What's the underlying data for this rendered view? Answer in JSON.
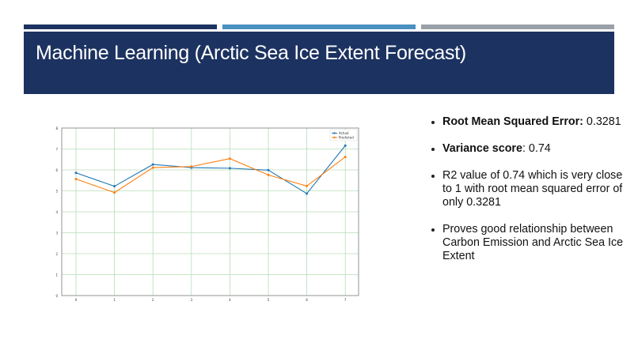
{
  "slide": {
    "title": "Machine Learning (Arctic Sea Ice Extent Forecast)",
    "colors": {
      "banner": "#1c3260",
      "bar_dark": "#1c3260",
      "bar_blue": "#4a90c0",
      "bar_gray": "#9aa0a8"
    }
  },
  "bullets": [
    {
      "bold": "Root Mean Squared Error:",
      "text": " 0.3281"
    },
    {
      "bold": "Variance score",
      "text": ": 0.74"
    },
    {
      "bold": "",
      "text": "R2 value of 0.74 which is very close to 1 with root mean squared error of only 0.3281"
    },
    {
      "bold": "",
      "text": "Proves good relationship between Carbon Emission and Arctic Sea Ice Extent"
    }
  ],
  "chart_data": {
    "type": "line",
    "title": "",
    "xlabel": "",
    "ylabel": "",
    "x": [
      0,
      1,
      2,
      3,
      4,
      5,
      6,
      7
    ],
    "x_tick_labels": [
      "0",
      "1",
      "2",
      "3",
      "4",
      "5",
      "6",
      "7"
    ],
    "y_tick_labels": [
      "0",
      "1",
      "2",
      "3",
      "4",
      "5",
      "6",
      "7",
      "8"
    ],
    "ylim": [
      0,
      8
    ],
    "grid": true,
    "legend_position": "upper right",
    "series": [
      {
        "name": "Actual",
        "color": "#1f77b4",
        "marker": "o",
        "values": [
          5.86,
          5.22,
          6.26,
          6.11,
          6.08,
          5.99,
          4.87,
          7.16
        ]
      },
      {
        "name": "Predicted",
        "color": "#ff7f0e",
        "marker": "o",
        "values": [
          5.56,
          4.92,
          6.11,
          6.16,
          6.54,
          5.76,
          5.23,
          6.62
        ]
      }
    ]
  }
}
